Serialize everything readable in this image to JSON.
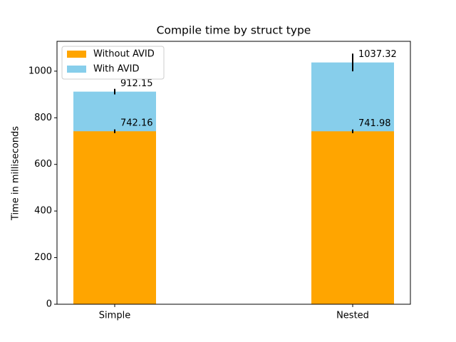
{
  "chart_data": {
    "type": "bar",
    "title": "Compile time by struct type",
    "y_label": "Time in milliseconds",
    "categories": [
      "Simple",
      "Nested"
    ],
    "series": [
      {
        "name": "Without AVID",
        "color": "#ffa500",
        "values": [
          742.16,
          741.98
        ],
        "errors": [
          8,
          8
        ]
      },
      {
        "name": "With AVID",
        "color": "#87ceeb",
        "values": [
          912.15,
          1037.32
        ],
        "errors": [
          12,
          38
        ]
      }
    ],
    "ylim": [
      0,
      1128
    ],
    "yticks": [
      0,
      200,
      400,
      600,
      800,
      1000
    ],
    "legend": "upper left"
  }
}
